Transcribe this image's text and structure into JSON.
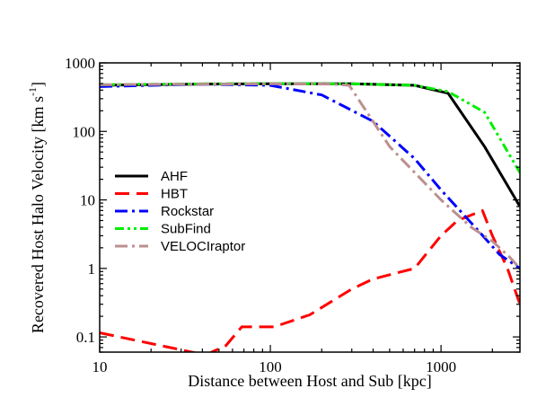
{
  "chart_data": {
    "type": "line",
    "title": "",
    "xlabel": "Distance between Host and Sub [kpc]",
    "ylabel": "Recovered Host Halo Velocity [km s",
    "ylabel_superscript": "-1",
    "ylabel_close": "]",
    "x_scale": "log",
    "y_scale": "log",
    "xlim": [
      10,
      2900
    ],
    "ylim": [
      0.06,
      1000
    ],
    "x_ticks": [
      {
        "value": 10,
        "label": "10"
      },
      {
        "value": 100,
        "label": "100"
      },
      {
        "value": 1000,
        "label": "1000"
      }
    ],
    "y_ticks": [
      {
        "value": 0.1,
        "label": "0.1"
      },
      {
        "value": 1,
        "label": "1"
      },
      {
        "value": 10,
        "label": "10"
      },
      {
        "value": 100,
        "label": "100"
      },
      {
        "value": 1000,
        "label": "1000"
      }
    ],
    "grid": false,
    "legend_position": "center-left",
    "series": [
      {
        "name": "AHF",
        "color": "#000000",
        "dash": "solid",
        "x": [
          10,
          40,
          100,
          300,
          700,
          1100,
          1800,
          2900
        ],
        "y": [
          470,
          490,
          495,
          495,
          470,
          360,
          60,
          8
        ]
      },
      {
        "name": "HBT",
        "color": "#ff0000",
        "dash": "dashed",
        "x": [
          10,
          37,
          42,
          55,
          68,
          105,
          170,
          300,
          400,
          700,
          1000,
          1250,
          1750,
          2000,
          2450,
          2900
        ],
        "y": [
          0.115,
          0.058,
          0.055,
          0.075,
          0.14,
          0.14,
          0.21,
          0.5,
          0.7,
          1.0,
          3.0,
          5.0,
          7.0,
          3.0,
          1.0,
          0.3
        ]
      },
      {
        "name": "Rockstar",
        "color": "#0000ff",
        "dash": "dashdot",
        "x": [
          10,
          40,
          100,
          200,
          400,
          700,
          1000,
          1700,
          2200,
          2900
        ],
        "y": [
          450,
          490,
          470,
          340,
          140,
          40,
          14,
          3.3,
          1.6,
          1.0
        ]
      },
      {
        "name": "SubFind",
        "color": "#00ee00",
        "dash": "dashdotdot",
        "x": [
          10,
          40,
          100,
          300,
          700,
          1100,
          1800,
          2900
        ],
        "y": [
          480,
          495,
          500,
          495,
          470,
          380,
          190,
          25
        ]
      },
      {
        "name": "VELOCIraptor",
        "color": "#bc8f8f",
        "dash": "dashdot",
        "x": [
          10,
          40,
          100,
          230,
          290,
          500,
          1000,
          1500,
          2000,
          2500,
          2900
        ],
        "y": [
          480,
          490,
          495,
          490,
          470,
          60,
          10,
          4,
          2.5,
          1.5,
          1.0
        ]
      }
    ]
  }
}
